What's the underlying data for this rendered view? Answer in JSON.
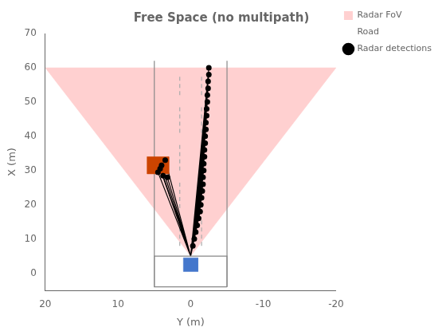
{
  "chart_data": {
    "type": "scatter",
    "title": "Free Space (no multipath)",
    "xlabel": "Y (m)",
    "ylabel": "X (m)",
    "xlim": [
      20,
      -20
    ],
    "ylim": [
      -5,
      70
    ],
    "xticks": [
      20,
      10,
      0,
      -10,
      -20
    ],
    "yticks": [
      0,
      10,
      20,
      30,
      40,
      50,
      60,
      70
    ],
    "grid": false,
    "legend": "upper right",
    "series": [
      {
        "name": "Radar FoV",
        "type": "area",
        "color": "#ffd0d0",
        "x": [
          0,
          20,
          -20,
          0
        ],
        "values": [
          5,
          60,
          60,
          5
        ]
      },
      {
        "type": "line",
        "color": "#aaaaaa",
        "line_style": "dashed",
        "x": [
          -1.5,
          -1.5,
          null,
          1.5,
          1.5,
          null,
          -1.5,
          -1.5,
          null,
          1.5,
          1.5,
          null,
          -1.5,
          -1.5,
          null,
          1.5,
          1.5,
          null,
          -1.5,
          -1.5,
          null,
          1.5,
          1.5,
          null,
          -1.5,
          -1.5,
          null,
          1.5,
          1.5
        ],
        "values": [
          8,
          16,
          null,
          8,
          16,
          null,
          19,
          27,
          null,
          19,
          27,
          null,
          30,
          38,
          null,
          30,
          38,
          null,
          41,
          49,
          null,
          41,
          49,
          null,
          52,
          58,
          null,
          52,
          58
        ]
      },
      {
        "type": "line",
        "color": "#000000",
        "x": [
          0,
          -2.5,
          null,
          0,
          -2.5,
          null,
          0,
          -2.4,
          null,
          0,
          -2.4,
          null,
          0,
          -2.3,
          null,
          0,
          -2.3,
          null,
          0,
          -2.2,
          null,
          0,
          -2.2,
          null,
          0,
          -2.1,
          null,
          0,
          -2.1,
          null,
          0,
          -2.0,
          null,
          0,
          -2.0,
          null,
          0,
          -1.9,
          null,
          0,
          -1.9,
          null,
          0,
          -1.8,
          null,
          0,
          -1.8,
          null,
          0,
          -1.7,
          null,
          0,
          -1.7,
          null,
          0,
          -1.6,
          null,
          0,
          -1.5,
          null,
          0,
          -1.4,
          null,
          0,
          -1.3,
          null,
          0,
          -1.1,
          null,
          0,
          -0.9,
          null,
          0,
          -0.7,
          null,
          0,
          -0.5,
          null,
          0,
          -0.3,
          null,
          0,
          3.5,
          null,
          0,
          4.0,
          null,
          0,
          4.2,
          null,
          0,
          4.5,
          null,
          0,
          3.8,
          null,
          0,
          3.2
        ],
        "values": [
          5,
          60,
          null,
          5,
          58,
          null,
          5,
          56,
          null,
          5,
          54,
          null,
          5,
          52,
          null,
          5,
          50,
          null,
          5,
          48,
          null,
          5,
          46,
          null,
          5,
          44,
          null,
          5,
          42,
          null,
          5,
          40,
          null,
          5,
          38,
          null,
          5,
          36,
          null,
          5,
          34,
          null,
          5,
          32,
          null,
          5,
          30,
          null,
          5,
          28,
          null,
          5,
          26,
          null,
          5,
          24,
          null,
          5,
          22,
          null,
          5,
          20,
          null,
          5,
          18,
          null,
          5,
          16,
          null,
          5,
          14,
          null,
          5,
          12,
          null,
          5,
          10,
          null,
          5,
          8,
          null,
          5,
          33.0,
          null,
          5,
          31.5,
          null,
          5,
          30.5,
          null,
          5,
          29.5,
          null,
          5,
          28.5,
          null,
          5,
          28.0
        ]
      },
      {
        "name": "Road",
        "type": "line",
        "color": "#888888",
        "x": [
          5.0,
          5.0,
          null,
          -5.0,
          -5.0
        ],
        "values": [
          -4.0,
          62.0,
          null,
          -4.0,
          62.0
        ]
      },
      {
        "type": "line",
        "color": "#888888",
        "x": [
          -5.0,
          5.0,
          5.0,
          -5.0,
          -5.0
        ],
        "values": [
          -4.0,
          -4.0,
          5.0,
          5.0,
          -4.0
        ]
      },
      {
        "type": "area",
        "color": "#4477cc",
        "x": [
          -1.0,
          1.0,
          1.0,
          -1.0,
          -1.0
        ],
        "values": [
          0.5,
          0.5,
          4.5,
          4.5,
          0.5
        ]
      },
      {
        "type": "area",
        "color": "#cc4400",
        "x": [
          3.0,
          6.0,
          6.0,
          3.0,
          3.0
        ],
        "values": [
          29.0,
          29.0,
          34.0,
          34.0,
          29.0
        ]
      },
      {
        "name": "Radar detections",
        "type": "scatter",
        "color": "#000000",
        "marker": "circle",
        "x": [
          -2.5,
          -2.5,
          -2.4,
          -2.4,
          -2.3,
          -2.3,
          -2.2,
          -2.2,
          -2.1,
          -2.1,
          -2.0,
          -2.0,
          -1.9,
          -1.9,
          -1.8,
          -1.8,
          -1.7,
          -1.7,
          -1.6,
          -1.5,
          -1.4,
          -1.3,
          -1.1,
          -0.9,
          -0.7,
          -0.5,
          -0.3
        ],
        "values": [
          60,
          58,
          56,
          54,
          52,
          50,
          48,
          46,
          44,
          42,
          40,
          38,
          36,
          34,
          32,
          30,
          28,
          26,
          24,
          22,
          20,
          18,
          16,
          14,
          12,
          10,
          8
        ]
      },
      {
        "type": "scatter",
        "color": "#000000",
        "marker": "circle",
        "x": [
          3.5,
          4.0,
          4.2,
          4.5,
          3.8,
          3.2
        ],
        "values": [
          33.0,
          31.5,
          30.5,
          29.5,
          28.5,
          28.0
        ]
      }
    ]
  }
}
